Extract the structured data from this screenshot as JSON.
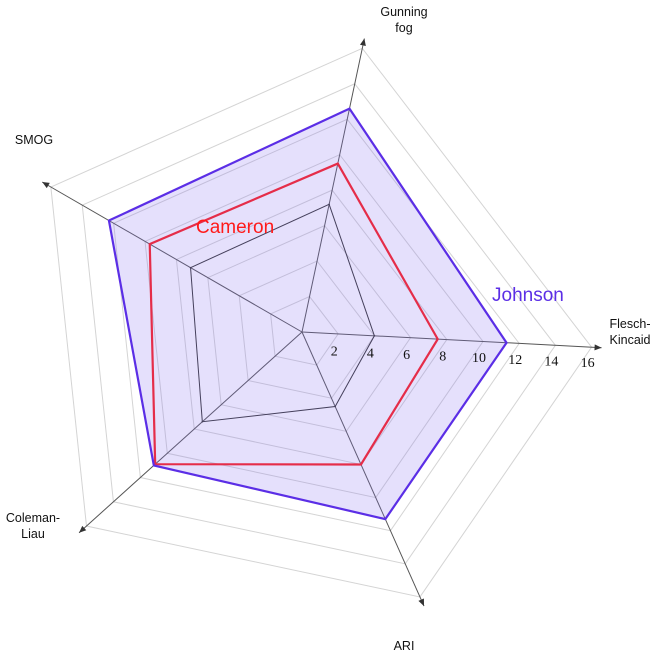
{
  "chart_data": {
    "type": "radar",
    "title": "",
    "axes": [
      {
        "name": "Flesch-Kincaid",
        "lines": [
          "Flesch-",
          "Kincaid"
        ]
      },
      {
        "name": "Gunning fog",
        "lines": [
          "Gunning",
          "fog"
        ]
      },
      {
        "name": "SMOG",
        "lines": [
          "SMOG"
        ]
      },
      {
        "name": "Coleman-Liau",
        "lines": [
          "Coleman-",
          "Liau"
        ]
      },
      {
        "name": "ARI",
        "lines": [
          "ARI"
        ]
      }
    ],
    "ticks": [
      "2",
      "4",
      "6",
      "8",
      "10",
      "12",
      "14",
      "16"
    ],
    "tick_values": [
      2,
      4,
      6,
      8,
      10,
      12,
      14,
      16
    ],
    "range": [
      0,
      16
    ],
    "grid": true,
    "series": [
      {
        "name": "",
        "values": [
          4.0,
          7.2,
          7.1,
          7.4,
          4.5
        ],
        "color": "#333333",
        "fill": false
      },
      {
        "name": "Cameron",
        "values": [
          7.5,
          9.5,
          9.7,
          10.9,
          8.0
        ],
        "color": "#ff1a1a",
        "fill": false
      },
      {
        "name": "Johnson",
        "values": [
          11.3,
          12.6,
          12.3,
          11.0,
          11.3
        ],
        "color": "#5b2ee6",
        "fill": true,
        "fill_color": "#8a73f0"
      }
    ]
  }
}
